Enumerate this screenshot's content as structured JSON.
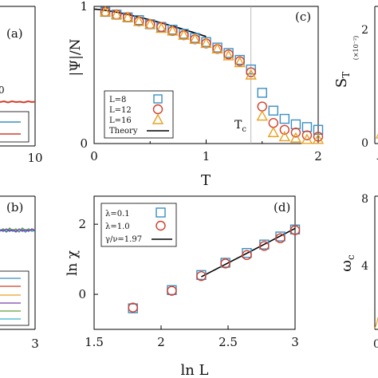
{
  "figure": {
    "panel_a": {
      "label": "(a)",
      "x_tick_right": "10",
      "ytick_partial": "0"
    },
    "panel_b": {
      "label": "(b)",
      "x_tick_right": "3"
    },
    "panel_c": {
      "label": "(c)",
      "ylabel": "|Ψ|/N",
      "xlabel": "T",
      "tc_label": "T",
      "tc_sub": "c",
      "legend": [
        "L=8",
        "L=12",
        "L=16",
        "Theory"
      ]
    },
    "panel_d": {
      "label": "(d)",
      "ylabel": "ln χ",
      "xlabel": "ln L",
      "legend": [
        "λ=0.1",
        "λ=1.0",
        "γ/ν=1.97"
      ]
    },
    "panel_right_top": {
      "ylabel": "S",
      "ysub": "T",
      "yscale": "(×10⁻²)",
      "ytick_2": "2",
      "ytick_0": "0",
      "xtick_left": "-2"
    },
    "panel_right_bottom": {
      "ylabel": "ω",
      "ysub": "c",
      "ytick_8": "8",
      "ytick_4": "4",
      "xtick_left": "0"
    }
  },
  "colors": {
    "square": "#3a8fc4",
    "circle": "#d43d2a",
    "triangle": "#e8a020",
    "theory": "#000000",
    "panel_b_lines": [
      "#3a8fc4",
      "#d43d2a",
      "#e8a020",
      "#7b3fa8",
      "#5aa03a",
      "#2fb5c8"
    ]
  },
  "chart_data": [
    {
      "panel": "c",
      "type": "scatter",
      "xlabel": "T",
      "ylabel": "|Ψ|/N",
      "xlim": [
        0,
        2
      ],
      "ylim": [
        0,
        1
      ],
      "x_ticks": [
        "0",
        "1",
        "2"
      ],
      "y_ticks": [
        "0",
        "1"
      ],
      "vline_x": 1.4,
      "x": [
        0.1,
        0.2,
        0.3,
        0.4,
        0.5,
        0.6,
        0.7,
        0.8,
        0.9,
        1.0,
        1.1,
        1.2,
        1.3,
        1.4,
        1.5,
        1.6,
        1.7,
        1.8,
        1.9,
        2.0
      ],
      "series": [
        {
          "name": "L=8",
          "marker": "square",
          "values": [
            0.96,
            0.94,
            0.92,
            0.9,
            0.87,
            0.85,
            0.83,
            0.8,
            0.77,
            0.74,
            0.7,
            0.66,
            0.61,
            0.54,
            0.37,
            0.24,
            0.18,
            0.14,
            0.12,
            0.1
          ]
        },
        {
          "name": "L=12",
          "marker": "circle",
          "values": [
            0.96,
            0.94,
            0.92,
            0.89,
            0.87,
            0.85,
            0.82,
            0.79,
            0.76,
            0.73,
            0.69,
            0.65,
            0.6,
            0.52,
            0.27,
            0.15,
            0.1,
            0.08,
            0.06,
            0.05
          ]
        },
        {
          "name": "L=16",
          "marker": "triangle",
          "values": [
            0.96,
            0.94,
            0.92,
            0.89,
            0.87,
            0.84,
            0.82,
            0.79,
            0.76,
            0.73,
            0.69,
            0.64,
            0.59,
            0.5,
            0.2,
            0.08,
            0.05,
            0.04,
            0.03,
            0.03
          ]
        }
      ],
      "theory": {
        "name": "Theory",
        "x": [
          0,
          1.0
        ],
        "y": [
          0.98,
          0.78
        ]
      }
    },
    {
      "panel": "d",
      "type": "scatter",
      "xlabel": "ln L",
      "ylabel": "ln χ",
      "xlim": [
        1.5,
        3.0
      ],
      "ylim": [
        -1.0,
        2.8
      ],
      "x_ticks": [
        "1.5",
        "2",
        "2.5",
        "3"
      ],
      "y_ticks": [
        "0",
        "2"
      ],
      "x": [
        1.79,
        2.08,
        2.3,
        2.48,
        2.64,
        2.77,
        2.89,
        3.0
      ],
      "series": [
        {
          "name": "λ=0.1",
          "marker": "square",
          "values": [
            -0.4,
            0.12,
            0.55,
            0.9,
            1.18,
            1.42,
            1.65,
            1.85
          ]
        },
        {
          "name": "λ=1.0",
          "marker": "circle",
          "values": [
            -0.38,
            0.1,
            0.52,
            0.88,
            1.12,
            1.38,
            1.6,
            1.83
          ]
        }
      ],
      "fit": {
        "name": "γ/ν=1.97",
        "x": [
          2.3,
          3.0
        ],
        "y": [
          0.5,
          1.88
        ]
      }
    }
  ]
}
